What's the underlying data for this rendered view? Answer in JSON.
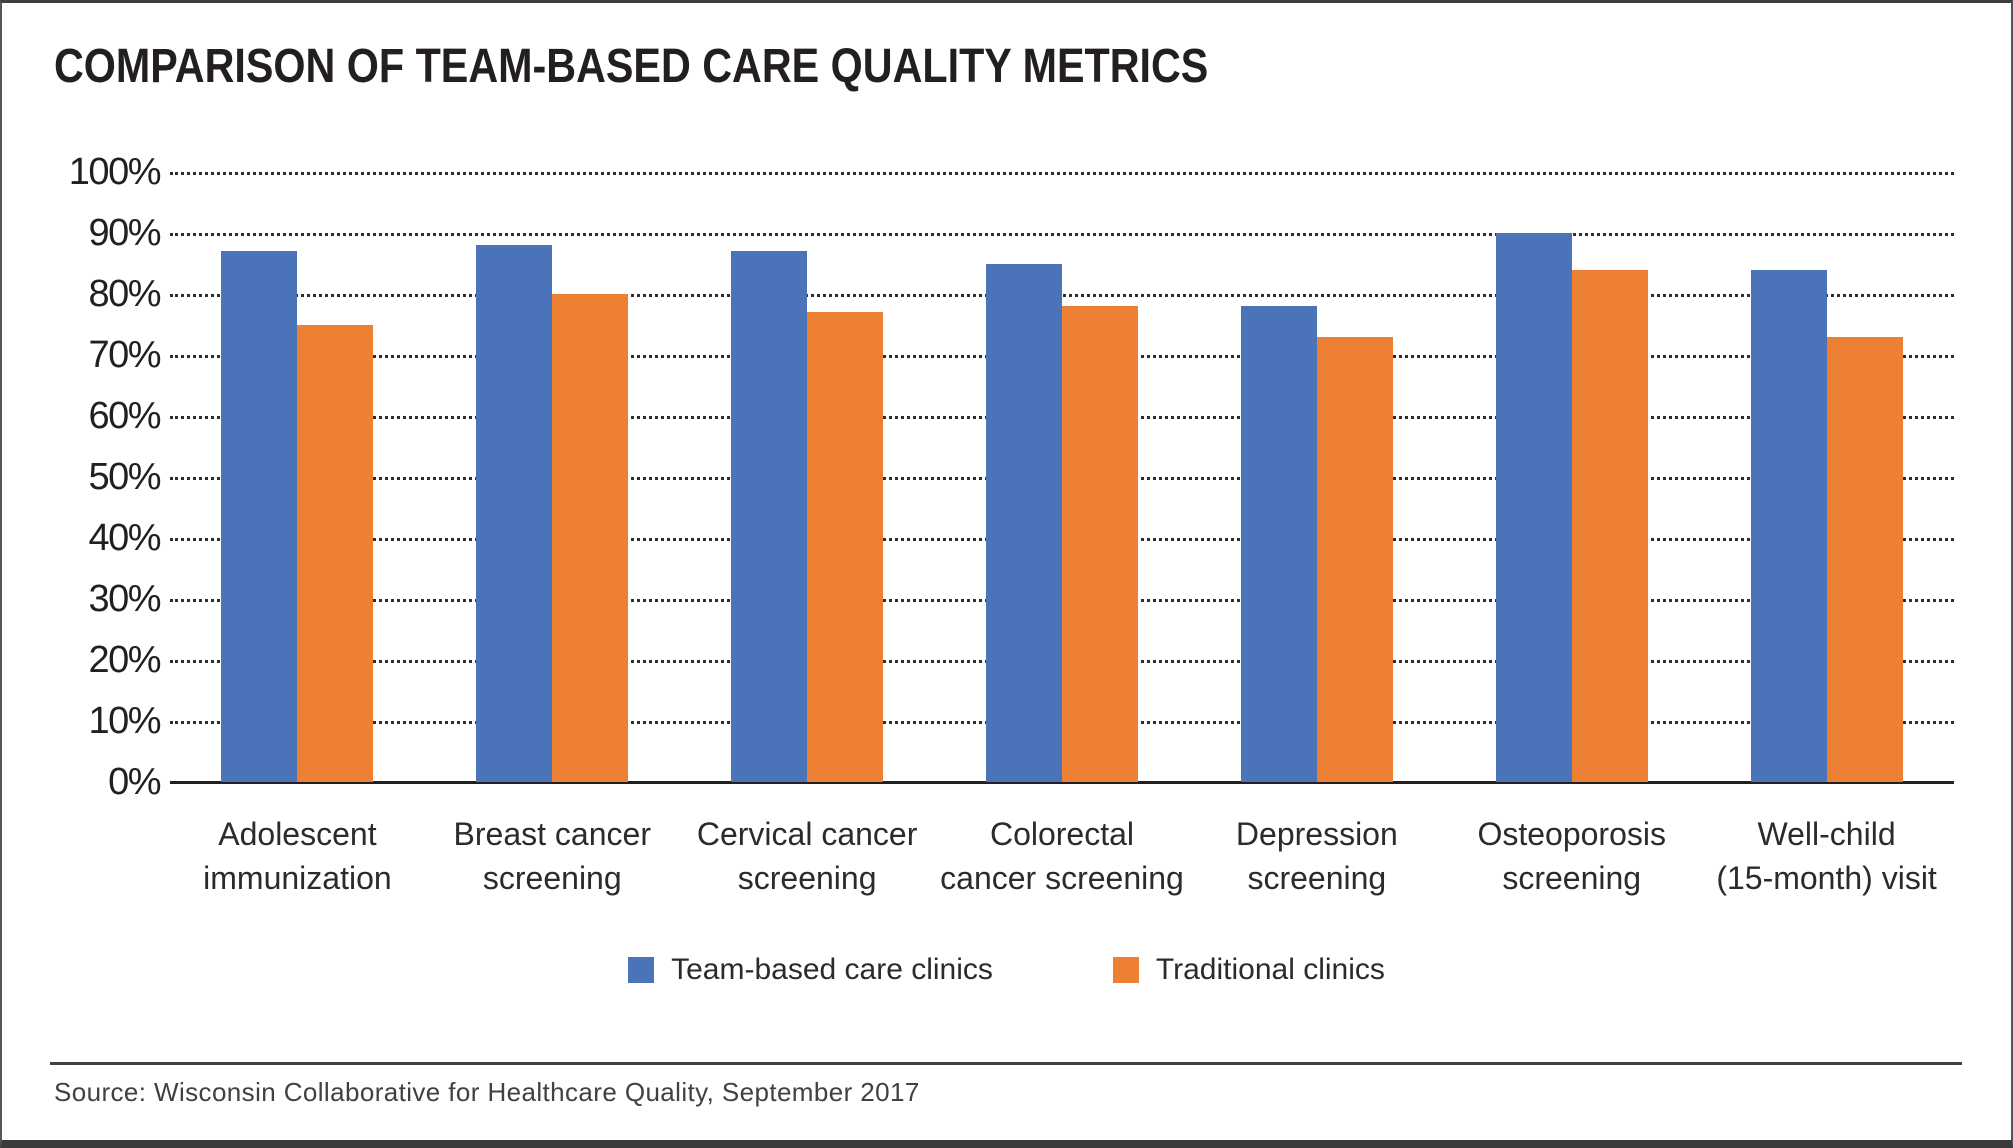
{
  "title": "COMPARISON OF TEAM-BASED CARE QUALITY METRICS",
  "source": "Source: Wisconsin Collaborative for Healthcare Quality, September 2017",
  "colors": {
    "team_based": "#4A73BA",
    "traditional": "#EE8033",
    "text": "#231F20"
  },
  "legend": [
    {
      "label": "Team-based care clinics",
      "color": "#4A73BA"
    },
    {
      "label": "Traditional clinics",
      "color": "#EE8033"
    }
  ],
  "chart_data": {
    "type": "bar",
    "title": "COMPARISON OF TEAM-BASED CARE QUALITY METRICS",
    "categories": [
      "Adolescent\nimmunization",
      "Breast cancer\nscreening",
      "Cervical cancer\nscreening",
      "Colorectal\ncancer screening",
      "Depression\nscreening",
      "Osteoporosis\nscreening",
      "Well-child\n(15-month) visit"
    ],
    "series": [
      {
        "name": "Team-based care clinics",
        "color": "#4A73BA",
        "values": [
          87,
          88,
          87,
          85,
          78,
          90,
          84
        ]
      },
      {
        "name": "Traditional clinics",
        "color": "#EE8033",
        "values": [
          75,
          80,
          77,
          78,
          73,
          84,
          73
        ]
      }
    ],
    "xlabel": "",
    "ylabel": "",
    "ylim": [
      0,
      100
    ],
    "y_ticks": [
      "0%",
      "10%",
      "20%",
      "30%",
      "40%",
      "50%",
      "60%",
      "70%",
      "80%",
      "90%",
      "100%"
    ],
    "grid": "horizontal dotted",
    "legend_position": "bottom"
  }
}
